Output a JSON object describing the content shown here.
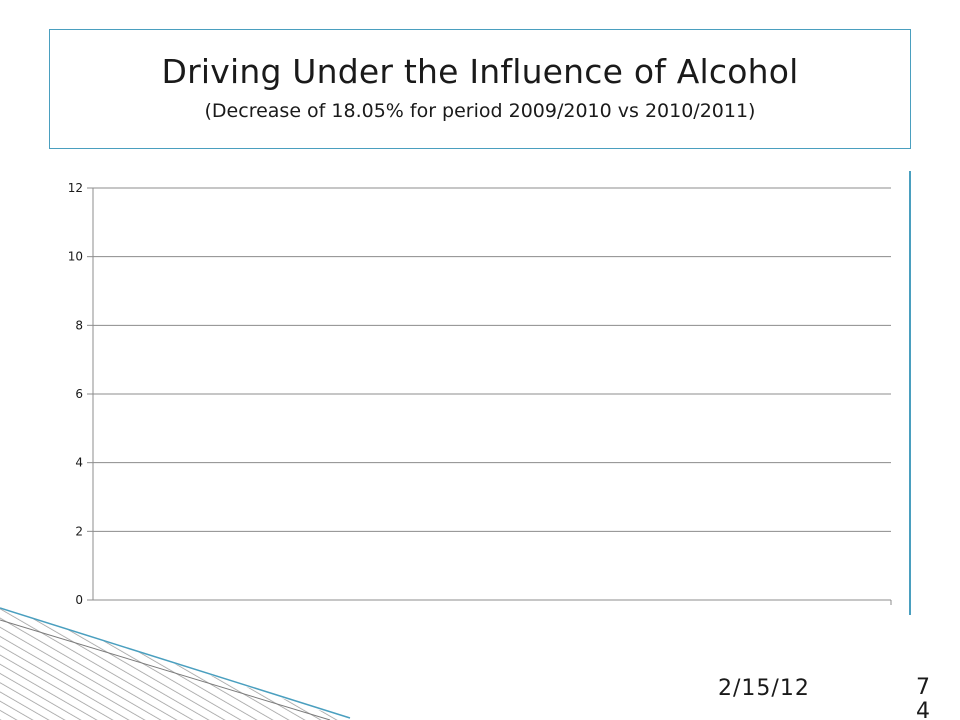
{
  "slide": {
    "title": "Driving Under the Influence of Alcohol",
    "subtitle": "(Decrease of 18.05% for period 2009/2010 vs 2010/2011)",
    "date": "2/15/12",
    "page_number": "74",
    "accent_color": "#4a9fbf"
  },
  "chart_data": {
    "type": "bar",
    "title": "",
    "xlabel": "",
    "ylabel": "",
    "categories": [],
    "series": [],
    "ylim": [
      0,
      12
    ],
    "yticks": [
      0,
      2,
      4,
      6,
      8,
      10,
      12
    ],
    "grid": true,
    "gridline_color": "#8c8c8c"
  }
}
